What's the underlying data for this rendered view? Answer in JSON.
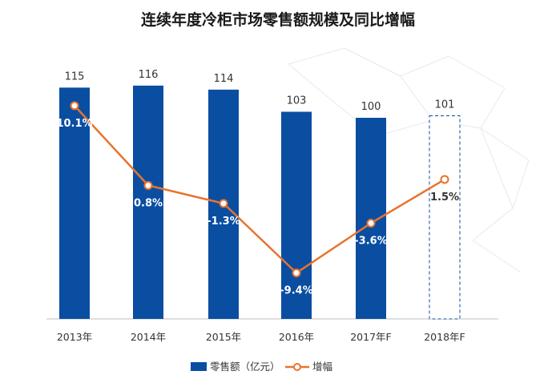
{
  "chart_data": {
    "type": "bar",
    "title": "连续年度冷柜市场零售额规模及同比增幅",
    "categories": [
      "2013年",
      "2014年",
      "2015年",
      "2016年",
      "2017年F",
      "2018年F"
    ],
    "series": [
      {
        "name": "零售额（亿元）",
        "type": "bar",
        "values": [
          115,
          116,
          114,
          103,
          100,
          101
        ],
        "labels": [
          "115",
          "116",
          "114",
          "103",
          "100",
          "101"
        ],
        "color": "#0a4ea2"
      },
      {
        "name": "增幅",
        "type": "line",
        "values": [
          10.1,
          0.8,
          -1.3,
          -9.4,
          -3.6,
          1.5
        ],
        "labels": [
          "10.1%",
          "0.8%",
          "-1.3%",
          "-9.4%",
          "-3.6%",
          "1.5%"
        ],
        "color": "#e8732e"
      }
    ],
    "forecast_category": "2018年F",
    "legend_position": "bottom",
    "grid": false
  }
}
